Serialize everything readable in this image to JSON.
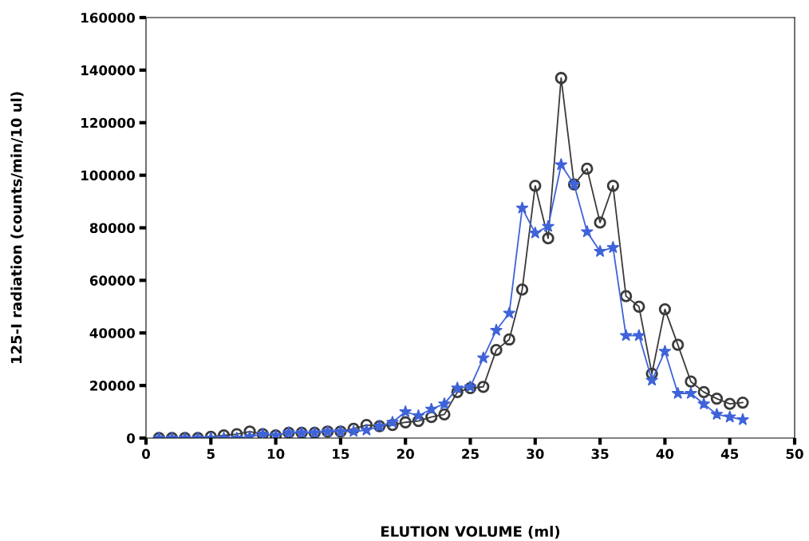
{
  "chart_data": {
    "type": "line",
    "xlabel": "ELUTION VOLUME (ml)",
    "ylabel": "125-I radiation (counts/min/10 ul)",
    "x": [
      1,
      2,
      3,
      4,
      5,
      6,
      7,
      8,
      9,
      10,
      11,
      12,
      13,
      14,
      15,
      16,
      17,
      18,
      19,
      20,
      21,
      22,
      23,
      24,
      25,
      26,
      27,
      28,
      29,
      30,
      31,
      32,
      33,
      34,
      35,
      36,
      37,
      38,
      39,
      40,
      41,
      42,
      43,
      44,
      45,
      46
    ],
    "series": [
      {
        "color": "#3a3a3a",
        "marker": "circle",
        "values": [
          0,
          0,
          0,
          0,
          500,
          1000,
          1500,
          2500,
          1500,
          1000,
          2000,
          2000,
          2000,
          2500,
          2500,
          3500,
          5000,
          4500,
          5000,
          6000,
          6500,
          8000,
          9000,
          17500,
          19000,
          19500,
          33500,
          37500,
          56500,
          96000,
          76000,
          137000,
          96500,
          102500,
          82000,
          96000,
          54000,
          50000,
          24500,
          49000,
          35500,
          21500,
          17500,
          15000,
          13000,
          13500
        ]
      },
      {
        "color": "#3f63d8",
        "marker": "star",
        "values": [
          0,
          0,
          0,
          0,
          0,
          0,
          0,
          500,
          1500,
          1000,
          2000,
          2000,
          2000,
          2500,
          2500,
          2500,
          3000,
          4500,
          6000,
          10000,
          8500,
          11000,
          13000,
          19000,
          19500,
          30500,
          41000,
          47500,
          87500,
          78000,
          80500,
          104000,
          96500,
          78500,
          71000,
          72500,
          39000,
          39000,
          22000,
          33000,
          17000,
          17000,
          13000,
          9000,
          8000,
          7000
        ]
      }
    ],
    "xlim": [
      0,
      50
    ],
    "xticks": [
      0,
      5,
      10,
      15,
      20,
      25,
      30,
      35,
      40,
      45,
      50
    ],
    "ylim": [
      0,
      160000
    ],
    "yticks": [
      0,
      20000,
      40000,
      60000,
      80000,
      100000,
      120000,
      140000,
      160000
    ],
    "grid": false,
    "legend": false
  }
}
